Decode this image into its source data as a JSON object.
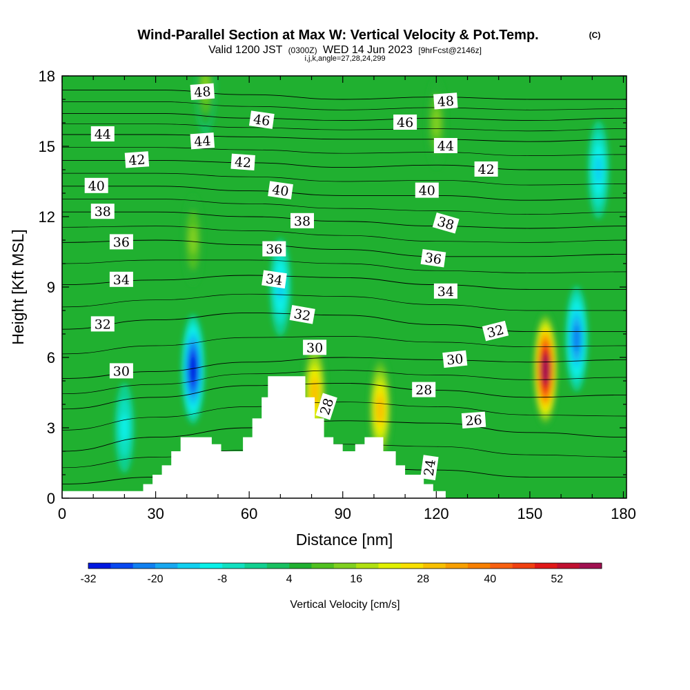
{
  "chart_data": {
    "type": "heatmap",
    "title": "Wind-Parallel Section at Max W: Vertical Velocity & Pot.Temp.",
    "title_mark": "(C)",
    "subtitle": {
      "prefix": "Valid 1200 JST",
      "zulu": "(0300Z)",
      "date": "WED 14 Jun 2023",
      "forecast": "[9hrFcst@2146z]"
    },
    "subtitle2": "i,j,k,angle=27,28,24,299",
    "xlabel": "Distance [nm]",
    "ylabel": "Height [Kft MSL]",
    "xlim": [
      0,
      181
    ],
    "ylim": [
      0,
      18
    ],
    "xticks": [
      0,
      30,
      60,
      90,
      120,
      150,
      180
    ],
    "yticks": [
      0,
      3,
      6,
      9,
      12,
      15,
      18
    ],
    "grid": false,
    "colorbar": {
      "label": "Vertical Velocity [cm/s]",
      "tick_values": [
        -32,
        -20,
        -8,
        4,
        16,
        28,
        40,
        52
      ],
      "bounds": [
        -32,
        60
      ],
      "step": 4,
      "colors": [
        "#0018e0",
        "#0848f0",
        "#1080f0",
        "#18a8f0",
        "#10d0f0",
        "#08f0e8",
        "#10e0c0",
        "#10d090",
        "#18c060",
        "#20b030",
        "#50c020",
        "#80d020",
        "#b0e010",
        "#e0f000",
        "#f8e000",
        "#f8c000",
        "#f8a000",
        "#f88000",
        "#f86010",
        "#f04010",
        "#e01818",
        "#c01030",
        "#a01050"
      ]
    },
    "velocity_field": {
      "background_cm_s": 0,
      "features": [
        {
          "x": 42,
          "y": 5.5,
          "w_cm_s": -32
        },
        {
          "x": 165,
          "y": 6.8,
          "w_cm_s": -22
        },
        {
          "x": 155,
          "y": 5.5,
          "w_cm_s": 56
        },
        {
          "x": 81,
          "y": 4.5,
          "w_cm_s": 28
        },
        {
          "x": 102,
          "y": 3.8,
          "w_cm_s": 28
        },
        {
          "x": 42,
          "y": 11,
          "w_cm_s": 12
        },
        {
          "x": 46,
          "y": 17.5,
          "w_cm_s": 14
        },
        {
          "x": 120,
          "y": 16,
          "w_cm_s": 12
        },
        {
          "x": 172,
          "y": 14,
          "w_cm_s": -14
        },
        {
          "x": 20,
          "y": 3,
          "w_cm_s": -10
        },
        {
          "x": 70,
          "y": 9,
          "w_cm_s": -14
        }
      ]
    },
    "terrain": [
      [
        0,
        0.3
      ],
      [
        26,
        0.3
      ],
      [
        26,
        0.6
      ],
      [
        29,
        0.6
      ],
      [
        29,
        1.0
      ],
      [
        32,
        1.0
      ],
      [
        32,
        1.4
      ],
      [
        35,
        1.4
      ],
      [
        35,
        2.0
      ],
      [
        38,
        2.0
      ],
      [
        38,
        2.6
      ],
      [
        48,
        2.6
      ],
      [
        48,
        2.3
      ],
      [
        51,
        2.3
      ],
      [
        51,
        2.0
      ],
      [
        58,
        2.0
      ],
      [
        58,
        2.6
      ],
      [
        61,
        2.6
      ],
      [
        61,
        3.4
      ],
      [
        64,
        3.4
      ],
      [
        64,
        4.3
      ],
      [
        66,
        4.3
      ],
      [
        66,
        5.2
      ],
      [
        78,
        5.2
      ],
      [
        78,
        4.3
      ],
      [
        81,
        4.3
      ],
      [
        81,
        3.4
      ],
      [
        84,
        3.4
      ],
      [
        84,
        2.6
      ],
      [
        87,
        2.6
      ],
      [
        87,
        2.3
      ],
      [
        90,
        2.3
      ],
      [
        90,
        2.0
      ],
      [
        94,
        2.0
      ],
      [
        94,
        2.3
      ],
      [
        97,
        2.3
      ],
      [
        97,
        2.6
      ],
      [
        103,
        2.6
      ],
      [
        103,
        2.0
      ],
      [
        107,
        2.0
      ],
      [
        107,
        1.4
      ],
      [
        110,
        1.4
      ],
      [
        110,
        1.0
      ],
      [
        116,
        1.0
      ],
      [
        116,
        0.6
      ],
      [
        119,
        0.6
      ],
      [
        119,
        0.3
      ],
      [
        123,
        0.3
      ],
      [
        123,
        0
      ],
      [
        181,
        0
      ]
    ],
    "theta_isolines": [
      {
        "value": 24,
        "pts": [
          [
            0,
            0.6
          ],
          [
            30,
            0.9
          ],
          [
            60,
            1.1
          ],
          [
            90,
            1.3
          ],
          [
            120,
            1.2
          ],
          [
            150,
            0.9
          ],
          [
            181,
            0.9
          ]
        ]
      },
      {
        "value": 26,
        "pts": [
          [
            0,
            2.0
          ],
          [
            30,
            2.6
          ],
          [
            60,
            3.0
          ],
          [
            90,
            3.3
          ],
          [
            120,
            3.2
          ],
          [
            150,
            2.8
          ],
          [
            181,
            2.6
          ]
        ]
      },
      {
        "value": 28,
        "pts": [
          [
            0,
            3.8
          ],
          [
            30,
            4.3
          ],
          [
            60,
            4.8
          ],
          [
            90,
            4.9
          ],
          [
            120,
            4.6
          ],
          [
            150,
            4.3
          ],
          [
            181,
            4.4
          ]
        ]
      },
      {
        "value": 30,
        "pts": [
          [
            0,
            5.1
          ],
          [
            30,
            5.4
          ],
          [
            60,
            5.8
          ],
          [
            90,
            6.0
          ],
          [
            120,
            5.9
          ],
          [
            150,
            5.8
          ],
          [
            181,
            5.9
          ]
        ]
      },
      {
        "value": 32,
        "pts": [
          [
            0,
            7.2
          ],
          [
            30,
            7.6
          ],
          [
            60,
            7.9
          ],
          [
            90,
            7.8
          ],
          [
            120,
            7.4
          ],
          [
            150,
            7.1
          ],
          [
            181,
            7.1
          ]
        ]
      },
      {
        "value": 34,
        "pts": [
          [
            0,
            9.1
          ],
          [
            30,
            9.3
          ],
          [
            60,
            9.5
          ],
          [
            90,
            9.4
          ],
          [
            120,
            9.1
          ],
          [
            150,
            8.9
          ],
          [
            181,
            8.9
          ]
        ]
      },
      {
        "value": 36,
        "pts": [
          [
            0,
            10.9
          ],
          [
            30,
            11.0
          ],
          [
            60,
            10.8
          ],
          [
            90,
            10.6
          ],
          [
            120,
            10.3
          ],
          [
            150,
            10.3
          ],
          [
            181,
            10.4
          ]
        ]
      },
      {
        "value": 38,
        "pts": [
          [
            0,
            12.2
          ],
          [
            30,
            12.2
          ],
          [
            60,
            12.0
          ],
          [
            90,
            11.8
          ],
          [
            120,
            11.6
          ],
          [
            150,
            11.5
          ],
          [
            181,
            11.6
          ]
        ]
      },
      {
        "value": 40,
        "pts": [
          [
            0,
            13.3
          ],
          [
            30,
            13.3
          ],
          [
            60,
            13.1
          ],
          [
            90,
            12.9
          ],
          [
            120,
            12.9
          ],
          [
            150,
            12.7
          ],
          [
            181,
            12.8
          ]
        ]
      },
      {
        "value": 42,
        "pts": [
          [
            0,
            14.4
          ],
          [
            30,
            14.4
          ],
          [
            60,
            14.3
          ],
          [
            90,
            14.1
          ],
          [
            120,
            14.2
          ],
          [
            150,
            14.0
          ],
          [
            181,
            14.0
          ]
        ]
      },
      {
        "value": 44,
        "pts": [
          [
            0,
            15.5
          ],
          [
            30,
            15.5
          ],
          [
            60,
            15.4
          ],
          [
            90,
            15.3
          ],
          [
            120,
            15.3
          ],
          [
            150,
            15.2
          ],
          [
            181,
            15.3
          ]
        ]
      },
      {
        "value": 46,
        "pts": [
          [
            0,
            16.4
          ],
          [
            30,
            16.4
          ],
          [
            60,
            16.2
          ],
          [
            90,
            16.1
          ],
          [
            120,
            16.2
          ],
          [
            150,
            16.1
          ],
          [
            181,
            16.2
          ]
        ]
      },
      {
        "value": 48,
        "pts": [
          [
            0,
            17.4
          ],
          [
            30,
            17.4
          ],
          [
            60,
            17.2
          ],
          [
            90,
            17.0
          ],
          [
            120,
            17.1
          ],
          [
            150,
            17.0
          ],
          [
            181,
            17.0
          ]
        ]
      }
    ],
    "contour_labels": [
      {
        "text": "48",
        "x": 45,
        "y": 17.3,
        "angle": -4
      },
      {
        "text": "48",
        "x": 123,
        "y": 16.9,
        "angle": -4
      },
      {
        "text": "46",
        "x": 64,
        "y": 16.1,
        "angle": 8
      },
      {
        "text": "46",
        "x": 110,
        "y": 16.0,
        "angle": 0
      },
      {
        "text": "44",
        "x": 13,
        "y": 15.5,
        "angle": 0
      },
      {
        "text": "44",
        "x": 45,
        "y": 15.2,
        "angle": -4
      },
      {
        "text": "44",
        "x": 123,
        "y": 15.0,
        "angle": 0
      },
      {
        "text": "42",
        "x": 24,
        "y": 14.4,
        "angle": -4
      },
      {
        "text": "42",
        "x": 58,
        "y": 14.3,
        "angle": 4
      },
      {
        "text": "42",
        "x": 136,
        "y": 14.0,
        "angle": 0
      },
      {
        "text": "40",
        "x": 11,
        "y": 13.3,
        "angle": 0
      },
      {
        "text": "40",
        "x": 70,
        "y": 13.1,
        "angle": 8
      },
      {
        "text": "40",
        "x": 117,
        "y": 13.1,
        "angle": 0
      },
      {
        "text": "38",
        "x": 13,
        "y": 12.2,
        "angle": 0
      },
      {
        "text": "38",
        "x": 77,
        "y": 11.8,
        "angle": 0
      },
      {
        "text": "38",
        "x": 123,
        "y": 11.7,
        "angle": 16
      },
      {
        "text": "36",
        "x": 19,
        "y": 10.9,
        "angle": 0
      },
      {
        "text": "36",
        "x": 68,
        "y": 10.6,
        "angle": 0
      },
      {
        "text": "36",
        "x": 119,
        "y": 10.2,
        "angle": 8
      },
      {
        "text": "34",
        "x": 19,
        "y": 9.3,
        "angle": 0
      },
      {
        "text": "34",
        "x": 68,
        "y": 9.3,
        "angle": 8
      },
      {
        "text": "34",
        "x": 123,
        "y": 8.8,
        "angle": 0
      },
      {
        "text": "32",
        "x": 13,
        "y": 7.4,
        "angle": 0
      },
      {
        "text": "32",
        "x": 77,
        "y": 7.8,
        "angle": 10
      },
      {
        "text": "32",
        "x": 139,
        "y": 7.1,
        "angle": -14
      },
      {
        "text": "30",
        "x": 19,
        "y": 5.4,
        "angle": 0
      },
      {
        "text": "30",
        "x": 81,
        "y": 6.4,
        "angle": 0
      },
      {
        "text": "30",
        "x": 126,
        "y": 5.9,
        "angle": -6
      },
      {
        "text": "28",
        "x": 85,
        "y": 3.9,
        "angle": -72
      },
      {
        "text": "28",
        "x": 116,
        "y": 4.6,
        "angle": 0
      },
      {
        "text": "26",
        "x": 132,
        "y": 3.3,
        "angle": -4
      },
      {
        "text": "24",
        "x": 118,
        "y": 1.3,
        "angle": -82
      }
    ]
  }
}
